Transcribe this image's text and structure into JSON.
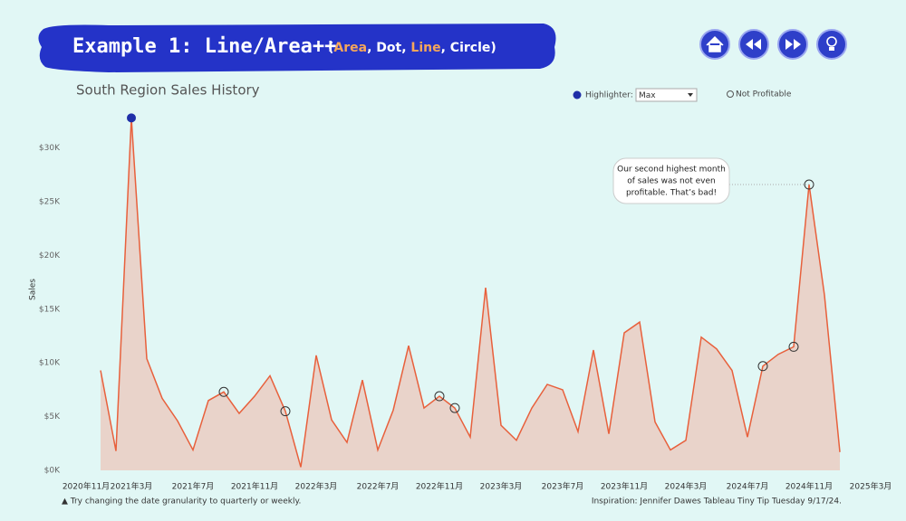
{
  "header": {
    "title": "Example 1: Line/Area++",
    "subtitle_parts": [
      {
        "text": "(",
        "color": "#ffffff"
      },
      {
        "text": "Area",
        "color": "#f5a65b"
      },
      {
        "text": ", Dot, ",
        "color": "#ffffff"
      },
      {
        "text": "Line",
        "color": "#f5a65b"
      },
      {
        "text": ", Circle)",
        "color": "#ffffff"
      }
    ]
  },
  "controls": {
    "highlighter_label": "Highlighter:",
    "highlighter_value": "Max",
    "highlight_color": "#1f2fa8",
    "not_profitable_label": "Not Profitable"
  },
  "chart_data": {
    "type": "area",
    "title": "South Region Sales History",
    "y_label": "Sales",
    "color": "#e8603c",
    "fill": "#e9d3ca",
    "x": [
      "2021年1月",
      "2021年2月",
      "2021年3月",
      "2021年4月",
      "2021年5月",
      "2021年6月",
      "2021年7月",
      "2021年8月",
      "2021年9月",
      "2021年10月",
      "2021年11月",
      "2021年12月",
      "2022年1月",
      "2022年2月",
      "2022年3月",
      "2022年4月",
      "2022年5月",
      "2022年6月",
      "2022年7月",
      "2022年8月",
      "2022年9月",
      "2022年10月",
      "2022年11月",
      "2022年12月",
      "2023年1月",
      "2023年2月",
      "2023年3月",
      "2023年4月",
      "2023年5月",
      "2023年6月",
      "2023年7月",
      "2023年8月",
      "2023年9月",
      "2023年10月",
      "2023年11月",
      "2023年12月",
      "2024年1月",
      "2024年2月",
      "2024年3月",
      "2024年4月",
      "2024年5月",
      "2024年6月",
      "2024年7月",
      "2024年8月",
      "2024年9月",
      "2024年10月",
      "2024年11月",
      "2024年12月",
      "2025年1月"
    ],
    "values": [
      9300,
      1800,
      32800,
      10400,
      6700,
      4600,
      1900,
      6500,
      7300,
      5300,
      6900,
      8800,
      5500,
      300,
      10700,
      4700,
      2600,
      8400,
      1900,
      5600,
      11600,
      5800,
      6900,
      5800,
      3100,
      17000,
      4200,
      2800,
      5800,
      8000,
      7500,
      3600,
      11200,
      3400,
      12800,
      13800,
      4500,
      1900,
      2800,
      12400,
      11300,
      9300,
      3100,
      9700,
      10800,
      11500,
      26600,
      16300,
      1700
    ],
    "not_profitable": [
      false,
      false,
      false,
      false,
      false,
      false,
      false,
      false,
      true,
      false,
      false,
      false,
      true,
      false,
      false,
      false,
      false,
      false,
      false,
      false,
      false,
      false,
      true,
      true,
      false,
      false,
      false,
      false,
      false,
      false,
      false,
      false,
      false,
      false,
      false,
      false,
      false,
      false,
      false,
      false,
      false,
      false,
      false,
      true,
      false,
      true,
      true,
      false,
      false
    ],
    "ylim": [
      0,
      33000
    ],
    "yticks": [
      {
        "value": 0,
        "label": "$0K"
      },
      {
        "value": 5000,
        "label": "$5K"
      },
      {
        "value": 10000,
        "label": "$10K"
      },
      {
        "value": 15000,
        "label": "$15K"
      },
      {
        "value": 20000,
        "label": "$20K"
      },
      {
        "value": 25000,
        "label": "$25K"
      },
      {
        "value": 30000,
        "label": "$30K"
      }
    ],
    "xlim": [
      "2020年11月",
      "2025年3月"
    ],
    "xticks": [
      "2020年11月",
      "2021年3月",
      "2021年7月",
      "2021年11月",
      "2022年3月",
      "2022年7月",
      "2022年11月",
      "2023年3月",
      "2023年7月",
      "2023年11月",
      "2024年3月",
      "2024年7月",
      "2024年11月",
      "2025年3月"
    ],
    "annotation": {
      "lines": [
        "Our second highest month",
        "of sales was not even",
        "profitable. That’s bad!"
      ],
      "target": 46
    }
  },
  "footer": {
    "note": "▲ Try changing the date granularity to quarterly or weekly.",
    "credit": "Inspiration: Jennifer Dawes Tableau Tiny Tip Tuesday 9/17/24."
  }
}
